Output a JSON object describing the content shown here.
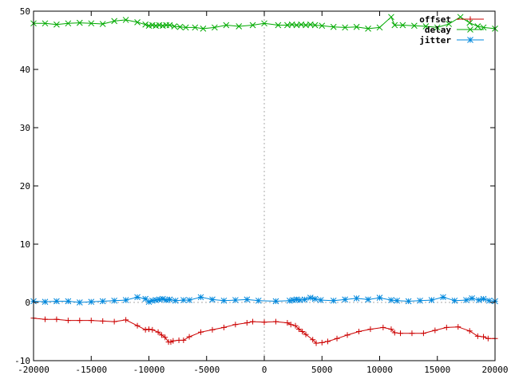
{
  "chart_data": {
    "type": "line",
    "xlim": [
      -20000,
      20000
    ],
    "ylim": [
      -10,
      50
    ],
    "x_ticks": [
      -20000,
      -15000,
      -10000,
      -5000,
      0,
      5000,
      10000,
      15000,
      20000
    ],
    "y_ticks": [
      -10,
      0,
      10,
      20,
      30,
      40,
      50
    ],
    "zero_lines": true,
    "grid": false,
    "legend_position": "top-right",
    "series": [
      {
        "name": "offset",
        "color": "#cc0000",
        "marker": "plus",
        "points": [
          [
            -20000,
            -2.7
          ],
          [
            -19000,
            -2.9
          ],
          [
            -18000,
            -2.9
          ],
          [
            -17000,
            -3.1
          ],
          [
            -16000,
            -3.1
          ],
          [
            -15000,
            -3.1
          ],
          [
            -14000,
            -3.2
          ],
          [
            -13000,
            -3.3
          ],
          [
            -12000,
            -3.0
          ],
          [
            -11000,
            -4.0
          ],
          [
            -10300,
            -4.7
          ],
          [
            -10000,
            -4.6
          ],
          [
            -9700,
            -4.7
          ],
          [
            -9200,
            -5.1
          ],
          [
            -8900,
            -5.6
          ],
          [
            -8600,
            -6.0
          ],
          [
            -8300,
            -6.8
          ],
          [
            -8100,
            -6.8
          ],
          [
            -7900,
            -6.6
          ],
          [
            -7400,
            -6.5
          ],
          [
            -7000,
            -6.5
          ],
          [
            -6500,
            -5.9
          ],
          [
            -5500,
            -5.1
          ],
          [
            -4500,
            -4.7
          ],
          [
            -3500,
            -4.3
          ],
          [
            -2500,
            -3.8
          ],
          [
            -1500,
            -3.5
          ],
          [
            -1000,
            -3.3
          ],
          [
            0,
            -3.4
          ],
          [
            1000,
            -3.3
          ],
          [
            2000,
            -3.5
          ],
          [
            2300,
            -3.8
          ],
          [
            2700,
            -4.0
          ],
          [
            3000,
            -4.6
          ],
          [
            3300,
            -5.0
          ],
          [
            3600,
            -5.5
          ],
          [
            4200,
            -6.4
          ],
          [
            4500,
            -7.0
          ],
          [
            5000,
            -6.9
          ],
          [
            5500,
            -6.7
          ],
          [
            6300,
            -6.2
          ],
          [
            7200,
            -5.6
          ],
          [
            8200,
            -5.0
          ],
          [
            9200,
            -4.6
          ],
          [
            10300,
            -4.3
          ],
          [
            11000,
            -4.6
          ],
          [
            11300,
            -5.2
          ],
          [
            11800,
            -5.3
          ],
          [
            12800,
            -5.3
          ],
          [
            13800,
            -5.3
          ],
          [
            14800,
            -4.8
          ],
          [
            15800,
            -4.3
          ],
          [
            16800,
            -4.2
          ],
          [
            17800,
            -4.9
          ],
          [
            18500,
            -5.8
          ],
          [
            19000,
            -5.9
          ],
          [
            19400,
            -6.2
          ],
          [
            20000,
            -6.2
          ]
        ]
      },
      {
        "name": "delay",
        "color": "#00aa00",
        "marker": "x",
        "points": [
          [
            -20000,
            47.9
          ],
          [
            -19000,
            47.9
          ],
          [
            -18000,
            47.7
          ],
          [
            -17000,
            47.9
          ],
          [
            -16000,
            48.0
          ],
          [
            -15000,
            47.9
          ],
          [
            -14000,
            47.8
          ],
          [
            -13000,
            48.3
          ],
          [
            -12000,
            48.5
          ],
          [
            -11000,
            48.1
          ],
          [
            -10300,
            47.7
          ],
          [
            -10000,
            47.5
          ],
          [
            -9700,
            47.6
          ],
          [
            -9400,
            47.5
          ],
          [
            -9100,
            47.6
          ],
          [
            -8800,
            47.5
          ],
          [
            -8500,
            47.6
          ],
          [
            -8200,
            47.6
          ],
          [
            -7800,
            47.4
          ],
          [
            -7300,
            47.3
          ],
          [
            -6800,
            47.2
          ],
          [
            -6000,
            47.2
          ],
          [
            -5300,
            47.0
          ],
          [
            -4300,
            47.2
          ],
          [
            -3300,
            47.6
          ],
          [
            -2200,
            47.4
          ],
          [
            -1000,
            47.6
          ],
          [
            0,
            47.9
          ],
          [
            1200,
            47.6
          ],
          [
            2000,
            47.6
          ],
          [
            2400,
            47.7
          ],
          [
            2800,
            47.6
          ],
          [
            3200,
            47.7
          ],
          [
            3600,
            47.6
          ],
          [
            4000,
            47.7
          ],
          [
            4400,
            47.6
          ],
          [
            5000,
            47.5
          ],
          [
            6000,
            47.3
          ],
          [
            7000,
            47.2
          ],
          [
            8000,
            47.3
          ],
          [
            9000,
            47.0
          ],
          [
            10000,
            47.2
          ],
          [
            11000,
            49.0
          ],
          [
            11300,
            47.6
          ],
          [
            12000,
            47.6
          ],
          [
            13000,
            47.5
          ],
          [
            14000,
            47.4
          ],
          [
            15000,
            47.2
          ],
          [
            16000,
            47.8
          ],
          [
            17000,
            49.0
          ],
          [
            17800,
            48.0
          ],
          [
            18500,
            47.4
          ],
          [
            19000,
            47.2
          ],
          [
            20000,
            47.0
          ]
        ]
      },
      {
        "name": "jitter",
        "color": "#0088dd",
        "marker": "star",
        "points": [
          [
            -20000,
            0.2
          ],
          [
            -19000,
            0.1
          ],
          [
            -18000,
            0.2
          ],
          [
            -17000,
            0.2
          ],
          [
            -16000,
            0.0
          ],
          [
            -15000,
            0.1
          ],
          [
            -14000,
            0.2
          ],
          [
            -13000,
            0.3
          ],
          [
            -12000,
            0.4
          ],
          [
            -11000,
            0.9
          ],
          [
            -10300,
            0.6
          ],
          [
            -10000,
            0.1
          ],
          [
            -9700,
            0.3
          ],
          [
            -9400,
            0.4
          ],
          [
            -9100,
            0.5
          ],
          [
            -8800,
            0.6
          ],
          [
            -8500,
            0.4
          ],
          [
            -8200,
            0.5
          ],
          [
            -7700,
            0.3
          ],
          [
            -7000,
            0.4
          ],
          [
            -6500,
            0.4
          ],
          [
            -5500,
            0.9
          ],
          [
            -4500,
            0.5
          ],
          [
            -3500,
            0.3
          ],
          [
            -2500,
            0.4
          ],
          [
            -1500,
            0.5
          ],
          [
            -500,
            0.3
          ],
          [
            1000,
            0.2
          ],
          [
            2200,
            0.3
          ],
          [
            2500,
            0.4
          ],
          [
            2800,
            0.5
          ],
          [
            3100,
            0.4
          ],
          [
            3500,
            0.5
          ],
          [
            4000,
            0.8
          ],
          [
            4400,
            0.6
          ],
          [
            4900,
            0.4
          ],
          [
            6000,
            0.3
          ],
          [
            7000,
            0.5
          ],
          [
            8000,
            0.7
          ],
          [
            9000,
            0.5
          ],
          [
            10000,
            0.8
          ],
          [
            11000,
            0.4
          ],
          [
            11500,
            0.3
          ],
          [
            12500,
            0.2
          ],
          [
            13500,
            0.3
          ],
          [
            14500,
            0.4
          ],
          [
            15500,
            0.9
          ],
          [
            16500,
            0.3
          ],
          [
            17500,
            0.4
          ],
          [
            18000,
            0.7
          ],
          [
            18600,
            0.4
          ],
          [
            19000,
            0.6
          ],
          [
            19500,
            0.3
          ],
          [
            20000,
            0.2
          ]
        ]
      }
    ]
  }
}
